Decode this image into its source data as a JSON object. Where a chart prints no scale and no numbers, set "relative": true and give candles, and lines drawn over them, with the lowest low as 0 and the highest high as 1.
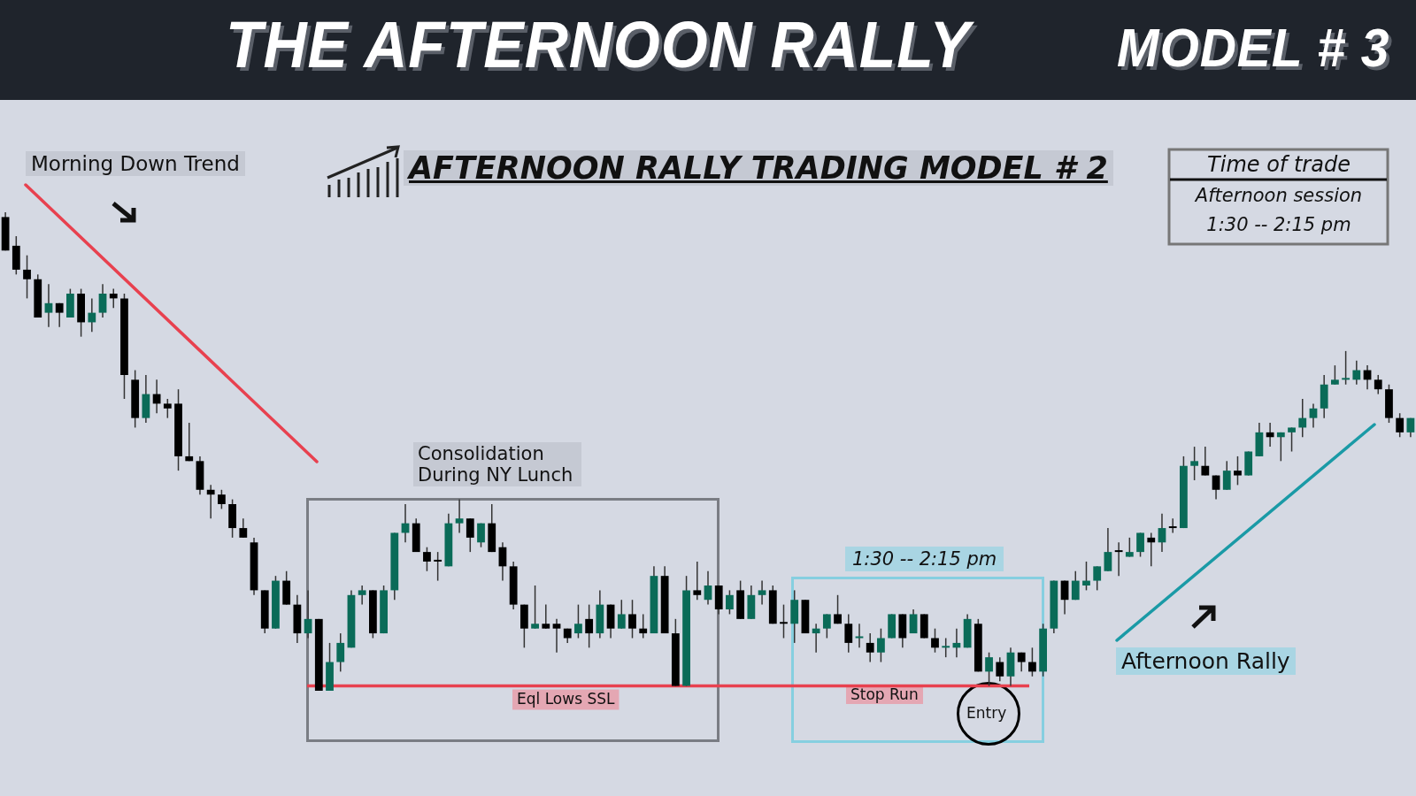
{
  "chart_data": {
    "type": "candlestick",
    "title": "THE AFTERNOON RALLY",
    "subtitle": "MODEL # 3",
    "relative": true,
    "ref_lines": [
      {
        "axis": "y",
        "value": 0.01,
        "label": "Eql Lows SSL",
        "color": "#e8414f"
      }
    ],
    "categories": [
      null,
      null,
      null,
      null,
      null,
      null,
      null,
      null,
      null,
      null,
      null,
      null,
      null,
      null,
      null,
      null,
      null,
      null,
      null,
      null,
      null,
      null,
      null,
      null,
      null,
      null,
      null,
      null,
      null,
      null,
      null,
      null,
      null,
      null,
      null,
      null,
      null,
      null,
      null,
      null,
      null,
      null,
      null,
      null,
      null,
      null,
      null,
      null,
      null,
      null,
      null,
      null,
      null,
      null,
      null,
      null,
      null,
      null,
      null,
      null,
      null,
      null,
      null,
      null,
      null,
      null,
      null,
      null,
      null,
      null,
      null,
      null,
      null,
      null,
      null,
      null,
      null,
      null,
      null,
      null,
      null,
      null,
      null,
      null,
      null,
      null,
      null,
      null,
      null,
      null,
      null,
      null,
      null,
      null,
      null,
      null,
      null,
      null,
      null,
      null,
      null,
      null,
      null,
      null,
      null,
      null,
      null,
      null,
      null,
      null,
      null,
      null,
      null,
      null,
      null,
      null,
      null,
      null,
      null,
      null,
      null,
      null,
      null,
      null,
      null,
      null,
      null,
      null,
      null,
      null,
      null
    ],
    "ohlc": [
      [
        0.99,
        1,
        0.92,
        0.92
      ],
      [
        0.93,
        0.95,
        0.87,
        0.88
      ],
      [
        0.88,
        0.91,
        0.82,
        0.86
      ],
      [
        0.86,
        0.87,
        0.78,
        0.78
      ],
      [
        0.79,
        0.85,
        0.76,
        0.81
      ],
      [
        0.81,
        0.81,
        0.76,
        0.79
      ],
      [
        0.78,
        0.84,
        0.78,
        0.83
      ],
      [
        0.83,
        0.84,
        0.74,
        0.77
      ],
      [
        0.77,
        0.82,
        0.75,
        0.79
      ],
      [
        0.79,
        0.85,
        0.78,
        0.83
      ],
      [
        0.83,
        0.84,
        0.8,
        0.82
      ],
      [
        0.82,
        0.83,
        0.61,
        0.66
      ],
      [
        0.65,
        0.67,
        0.55,
        0.57
      ],
      [
        0.57,
        0.66,
        0.56,
        0.62
      ],
      [
        0.62,
        0.65,
        0.58,
        0.6
      ],
      [
        0.6,
        0.61,
        0.57,
        0.59
      ],
      [
        0.6,
        0.63,
        0.46,
        0.49
      ],
      [
        0.49,
        0.56,
        0.48,
        0.48
      ],
      [
        0.48,
        0.49,
        0.41,
        0.42
      ],
      [
        0.42,
        0.43,
        0.36,
        0.41
      ],
      [
        0.41,
        0.42,
        0.38,
        0.39
      ],
      [
        0.39,
        0.4,
        0.32,
        0.34
      ],
      [
        0.34,
        0.36,
        0.32,
        0.32
      ],
      [
        0.31,
        0.32,
        0.2,
        0.21
      ],
      [
        0.21,
        0.21,
        0.12,
        0.13
      ],
      [
        0.13,
        0.24,
        0.13,
        0.23
      ],
      [
        0.23,
        0.25,
        0.18,
        0.18
      ],
      [
        0.18,
        0.2,
        0.1,
        0.12
      ],
      [
        0.12,
        0.21,
        0.11,
        0.15
      ],
      [
        0.15,
        0.15,
        0,
        0
      ],
      [
        0,
        0.1,
        0,
        0.06
      ],
      [
        0.06,
        0.12,
        0.04,
        0.1
      ],
      [
        0.09,
        0.21,
        0.09,
        0.2
      ],
      [
        0.2,
        0.22,
        0.18,
        0.21
      ],
      [
        0.21,
        0.21,
        0.11,
        0.12
      ],
      [
        0.12,
        0.22,
        0.12,
        0.21
      ],
      [
        0.21,
        0.33,
        0.19,
        0.33
      ],
      [
        0.33,
        0.39,
        0.31,
        0.35
      ],
      [
        0.35,
        0.36,
        0.29,
        0.29
      ],
      [
        0.29,
        0.3,
        0.25,
        0.27
      ],
      [
        0.27,
        0.29,
        0.23,
        0.27
      ],
      [
        0.26,
        0.37,
        0.26,
        0.35
      ],
      [
        0.35,
        0.4,
        0.33,
        0.36
      ],
      [
        0.36,
        0.36,
        0.29,
        0.32
      ],
      [
        0.31,
        0.35,
        0.3,
        0.35
      ],
      [
        0.35,
        0.39,
        0.29,
        0.29
      ],
      [
        0.3,
        0.31,
        0.23,
        0.26
      ],
      [
        0.26,
        0.27,
        0.17,
        0.18
      ],
      [
        0.18,
        0.18,
        0.09,
        0.13
      ],
      [
        0.13,
        0.22,
        0.13,
        0.14
      ],
      [
        0.14,
        0.18,
        0.13,
        0.13
      ],
      [
        0.14,
        0.15,
        0.08,
        0.13
      ],
      [
        0.13,
        0.13,
        0.1,
        0.11
      ],
      [
        0.12,
        0.18,
        0.11,
        0.14
      ],
      [
        0.15,
        0.18,
        0.09,
        0.12
      ],
      [
        0.12,
        0.21,
        0.11,
        0.18
      ],
      [
        0.18,
        0.18,
        0.11,
        0.13
      ],
      [
        0.13,
        0.19,
        0.13,
        0.16
      ],
      [
        0.16,
        0.19,
        0.11,
        0.13
      ],
      [
        0.13,
        0.16,
        0.11,
        0.12
      ],
      [
        0.12,
        0.26,
        0.12,
        0.24
      ],
      [
        0.24,
        0.26,
        0.12,
        0.12
      ],
      [
        0.12,
        0.15,
        0.01,
        0.01
      ],
      [
        0.01,
        0.24,
        0.01,
        0.21
      ],
      [
        0.21,
        0.27,
        0.19,
        0.2
      ],
      [
        0.19,
        0.25,
        0.18,
        0.22
      ],
      [
        0.22,
        0.22,
        0.16,
        0.17
      ],
      [
        0.17,
        0.21,
        0.16,
        0.2
      ],
      [
        0.21,
        0.23,
        0.15,
        0.15
      ],
      [
        0.15,
        0.22,
        0.15,
        0.2
      ],
      [
        0.2,
        0.23,
        0.18,
        0.21
      ],
      [
        0.21,
        0.22,
        0.14,
        0.14
      ],
      [
        0.14,
        0.18,
        0.11,
        0.14
      ],
      [
        0.14,
        0.21,
        0.1,
        0.19
      ],
      [
        0.19,
        0.19,
        0.12,
        0.12
      ],
      [
        0.12,
        0.14,
        0.08,
        0.13
      ],
      [
        0.13,
        0.16,
        0.11,
        0.16
      ],
      [
        0.16,
        0.2,
        0.14,
        0.14
      ],
      [
        0.14,
        0.16,
        0.08,
        0.1
      ],
      [
        0.11,
        0.14,
        0.09,
        0.11
      ],
      [
        0.1,
        0.12,
        0.06,
        0.08
      ],
      [
        0.08,
        0.13,
        0.06,
        0.11
      ],
      [
        0.11,
        0.16,
        0.11,
        0.16
      ],
      [
        0.16,
        0.16,
        0.09,
        0.11
      ],
      [
        0.12,
        0.17,
        0.12,
        0.16
      ],
      [
        0.16,
        0.16,
        0.11,
        0.11
      ],
      [
        0.11,
        0.13,
        0.08,
        0.09
      ],
      [
        0.09,
        0.11,
        0.07,
        0.09
      ],
      [
        0.09,
        0.13,
        0.07,
        0.1
      ],
      [
        0.09,
        0.16,
        0.09,
        0.15
      ],
      [
        0.14,
        0.15,
        0.04,
        0.04
      ],
      [
        0.04,
        0.08,
        0.01,
        0.07
      ],
      [
        0.06,
        0.07,
        0.02,
        0.03
      ],
      [
        0.03,
        0.09,
        0.01,
        0.08
      ],
      [
        0.08,
        0.08,
        0.04,
        0.06
      ],
      [
        0.06,
        0.09,
        0.03,
        0.04
      ],
      [
        0.04,
        0.14,
        0.03,
        0.13
      ],
      [
        0.13,
        0.23,
        0.12,
        0.23
      ],
      [
        0.23,
        0.23,
        0.16,
        0.19
      ],
      [
        0.19,
        0.25,
        0.19,
        0.23
      ],
      [
        0.22,
        0.27,
        0.21,
        0.23
      ],
      [
        0.23,
        0.26,
        0.21,
        0.26
      ],
      [
        0.25,
        0.34,
        0.25,
        0.29
      ],
      [
        0.29,
        0.31,
        0.24,
        0.29
      ],
      [
        0.28,
        0.32,
        0.28,
        0.29
      ],
      [
        0.29,
        0.33,
        0.28,
        0.33
      ],
      [
        0.32,
        0.33,
        0.26,
        0.31
      ],
      [
        0.31,
        0.37,
        0.29,
        0.34
      ],
      [
        0.34,
        0.36,
        0.33,
        0.34
      ],
      [
        0.34,
        0.49,
        0.34,
        0.47
      ],
      [
        0.47,
        0.51,
        0.44,
        0.48
      ],
      [
        0.47,
        0.51,
        0.45,
        0.45
      ],
      [
        0.45,
        0.45,
        0.4,
        0.42
      ],
      [
        0.42,
        0.48,
        0.42,
        0.46
      ],
      [
        0.46,
        0.49,
        0.43,
        0.45
      ],
      [
        0.45,
        0.5,
        0.45,
        0.5
      ],
      [
        0.49,
        0.56,
        0.49,
        0.54
      ],
      [
        0.54,
        0.56,
        0.51,
        0.53
      ],
      [
        0.53,
        0.54,
        0.48,
        0.54
      ],
      [
        0.54,
        0.55,
        0.5,
        0.55
      ],
      [
        0.55,
        0.61,
        0.53,
        0.57
      ],
      [
        0.57,
        0.6,
        0.55,
        0.59
      ],
      [
        0.59,
        0.66,
        0.57,
        0.64
      ],
      [
        0.64,
        0.68,
        0.64,
        0.65
      ],
      [
        0.65,
        0.71,
        0.64,
        0.65
      ],
      [
        0.65,
        0.69,
        0.64,
        0.67
      ],
      [
        0.67,
        0.68,
        0.63,
        0.65
      ],
      [
        0.65,
        0.66,
        0.62,
        0.63
      ],
      [
        0.63,
        0.64,
        0.56,
        0.57
      ],
      [
        0.57,
        0.58,
        0.53,
        0.54
      ],
      [
        0.54,
        0.57,
        0.53,
        0.57
      ]
    ],
    "colors": [
      "#000000",
      "#000000",
      "#000000",
      "#000000",
      "#0a6b58",
      "#000000",
      "#0a6b58",
      "#000000",
      "#0a6b58",
      "#0a6b58",
      "#000000",
      "#000000",
      "#000000",
      "#0a6b58",
      "#000000",
      "#000000",
      "#000000",
      "#000000",
      "#000000",
      "#000000",
      "#000000",
      "#000000",
      "#000000",
      "#000000",
      "#000000",
      "#0a6b58",
      "#000000",
      "#000000",
      "#0a6b58",
      "#000000",
      "#0a6b58",
      "#0a6b58",
      "#0a6b58",
      "#0a6b58",
      "#000000",
      "#0a6b58",
      "#0a6b58",
      "#0a6b58",
      "#000000",
      "#000000",
      "#000000",
      "#0a6b58",
      "#0a6b58",
      "#000000",
      "#0a6b58",
      "#000000",
      "#000000",
      "#000000",
      "#000000",
      "#0a6b58",
      "#000000",
      "#000000",
      "#000000",
      "#0a6b58",
      "#000000",
      "#0a6b58",
      "#000000",
      "#0a6b58",
      "#000000",
      "#000000",
      "#0a6b58",
      "#000000",
      "#000000",
      "#0a6b58",
      "#000000",
      "#0a6b58",
      "#000000",
      "#0a6b58",
      "#000000",
      "#0a6b58",
      "#0a6b58",
      "#000000",
      "#000000",
      "#0a6b58",
      "#000000",
      "#0a6b58",
      "#0a6b58",
      "#000000",
      "#000000",
      "#0a6b58",
      "#000000",
      "#0a6b58",
      "#0a6b58",
      "#000000",
      "#0a6b58",
      "#000000",
      "#000000",
      "#0a6b58",
      "#0a6b58",
      "#0a6b58",
      "#000000",
      "#0a6b58",
      "#000000",
      "#0a6b58",
      "#000000",
      "#000000",
      "#0a6b58",
      "#0a6b58",
      "#000000",
      "#0a6b58",
      "#0a6b58",
      "#0a6b58",
      "#0a6b58",
      "#000000",
      "#0a6b58",
      "#0a6b58",
      "#000000",
      "#0a6b58",
      "#000000",
      "#0a6b58",
      "#0a6b58",
      "#000000",
      "#000000",
      "#0a6b58",
      "#000000",
      "#0a6b58",
      "#0a6b58",
      "#000000",
      "#0a6b58",
      "#0a6b58",
      "#0a6b58",
      "#0a6b58",
      "#0a6b58",
      "#0a6b58",
      "#0a6b58",
      "#0a6b58",
      "#000000",
      "#000000",
      "#000000",
      "#000000",
      "#0a6b58"
    ],
    "annotations": [
      "Morning Down Trend",
      "AFTERNOON RALLY TRADING MODEL # 2",
      "Time of trade",
      "Afternoon session",
      "1:30 -- 2:15 pm",
      "Consolidation During NY Lunch",
      "1:30 -- 2:15 pm",
      "Stop Run",
      "Entry",
      "Afternoon Rally"
    ]
  }
}
